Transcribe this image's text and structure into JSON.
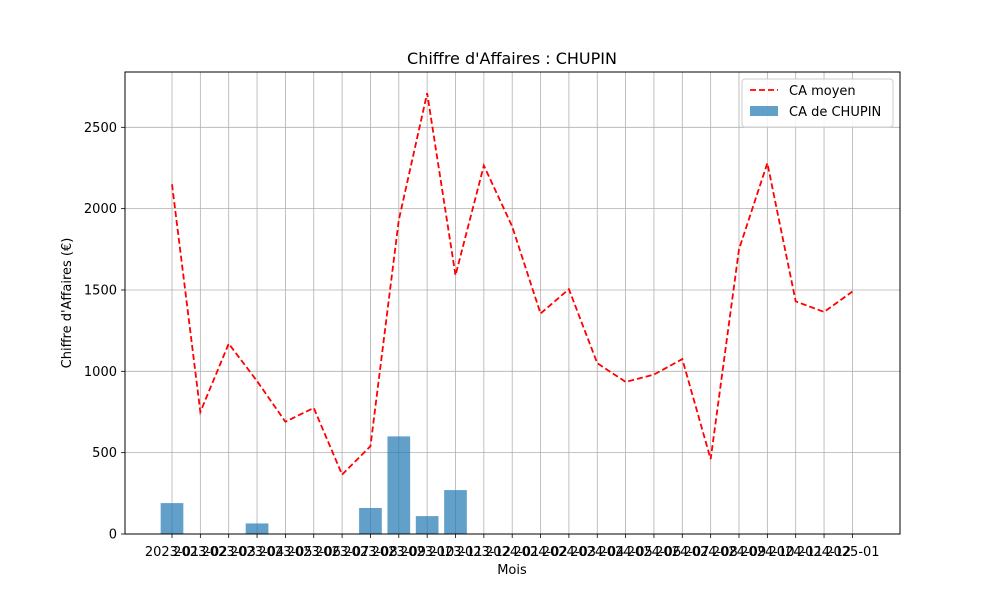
{
  "chart_data": {
    "type": "bar",
    "title": "Chiffre d'Affaires : CHUPIN",
    "xlabel": "Mois",
    "ylabel": "Chiffre d'Affaires (€)",
    "categories": [
      "2023-01",
      "2023-02",
      "2023-03",
      "2023-04",
      "2023-05",
      "2023-06",
      "2023-07",
      "2023-08",
      "2023-09",
      "2023-10",
      "2023-11",
      "2023-12",
      "2024-01",
      "2024-02",
      "2024-03",
      "2024-04",
      "2024-05",
      "2024-06",
      "2024-07",
      "2024-08",
      "2024-09",
      "2024-10",
      "2024-11",
      "2024-12",
      "2025-01"
    ],
    "ylim": [
      0,
      2840
    ],
    "yticks": [
      0,
      500,
      1000,
      1500,
      2000,
      2500
    ],
    "grid": true,
    "legend_position": "top-right",
    "series": [
      {
        "name": "CA moyen",
        "kind": "line",
        "style": "dashed",
        "color": "#ff0000",
        "values": [
          2150,
          750,
          1170,
          940,
          690,
          775,
          365,
          540,
          1930,
          2710,
          1590,
          2265,
          1890,
          1355,
          1505,
          1050,
          935,
          980,
          1075,
          460,
          1750,
          2280,
          1430,
          1365,
          1490
        ]
      },
      {
        "name": "CA de CHUPIN",
        "kind": "bar",
        "color": "#1f77b4",
        "values": [
          190,
          0,
          0,
          65,
          0,
          0,
          0,
          160,
          600,
          110,
          270,
          0,
          0,
          0,
          0,
          0,
          0,
          0,
          0,
          0,
          0,
          0,
          0,
          0,
          0
        ]
      }
    ]
  }
}
